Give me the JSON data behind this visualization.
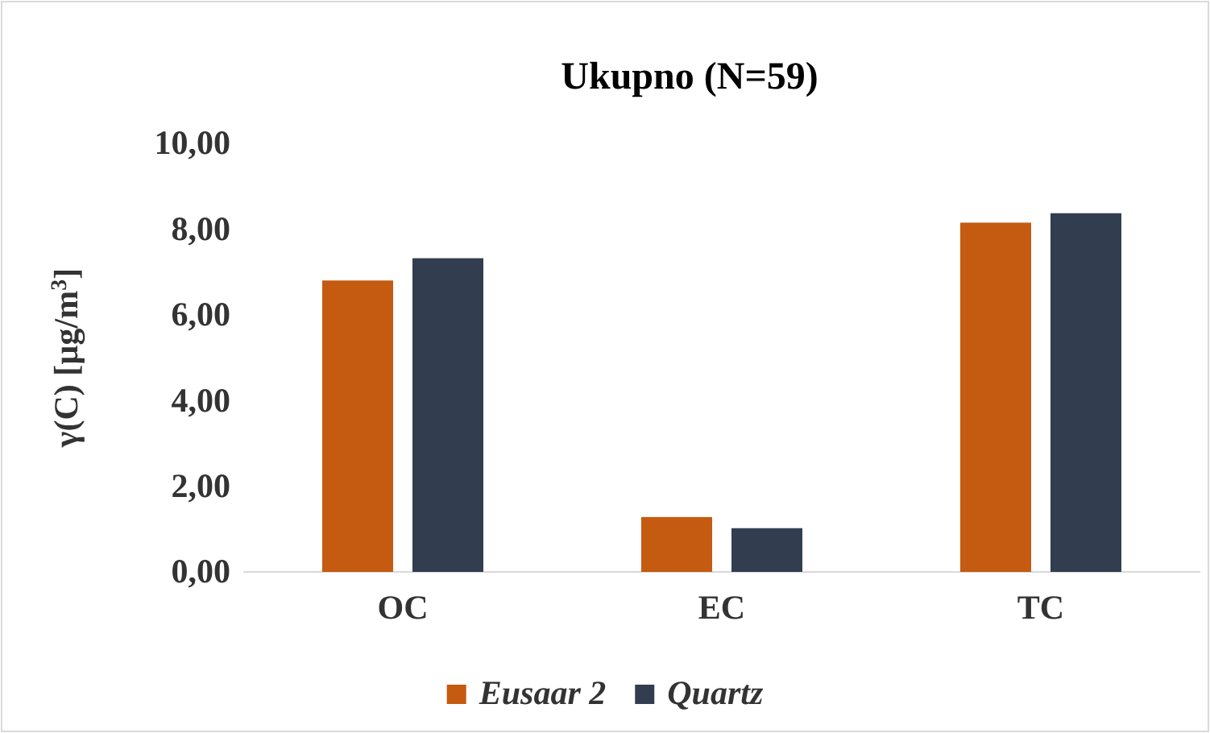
{
  "chart_data": {
    "type": "bar",
    "title": "Ukupno (N=59)",
    "ylabel": "γ(C) [µg/m$^{3}$]",
    "categories": [
      "OC",
      "EC",
      "TC"
    ],
    "series": [
      {
        "name": "Eusaar 2",
        "color": "#c55a11",
        "values": [
          6.8,
          1.28,
          8.15
        ]
      },
      {
        "name": "Quartz",
        "color": "#323e4f",
        "values": [
          7.32,
          1.02,
          8.37
        ]
      }
    ],
    "ylim": [
      0,
      10
    ],
    "yticks": [
      {
        "value": 0,
        "label": "0,00"
      },
      {
        "value": 2,
        "label": "2,00"
      },
      {
        "value": 4,
        "label": "4,00"
      },
      {
        "value": 6,
        "label": "6,00"
      },
      {
        "value": 8,
        "label": "8,00"
      },
      {
        "value": 10,
        "label": "10,00"
      }
    ],
    "grid": false,
    "legend": "bottom"
  }
}
